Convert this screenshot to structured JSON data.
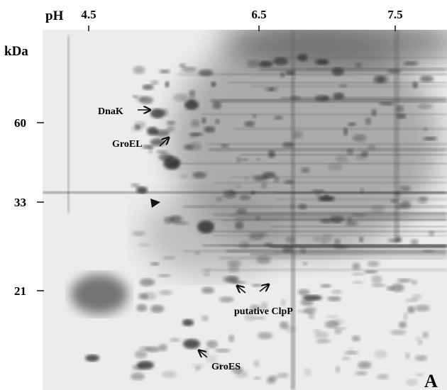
{
  "axes": {
    "x_title": "pH",
    "x_ticks": [
      "4.5",
      "6.5",
      "7.5"
    ],
    "y_title": "kDa",
    "y_ticks": [
      "60",
      "33",
      "21"
    ]
  },
  "annotations": [
    "DnaK",
    "GroEL",
    "putative ClpP",
    "GroES"
  ],
  "panel_label": "A"
}
